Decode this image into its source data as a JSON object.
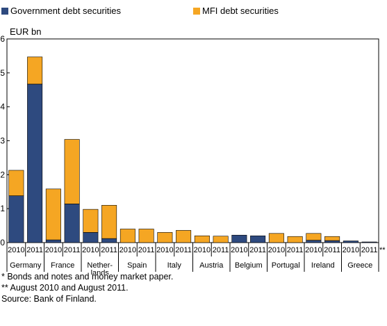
{
  "chart_data": {
    "type": "bar",
    "stacked": true,
    "unit_label": "EUR bn",
    "ylim": [
      0,
      6
    ],
    "y_ticks": [
      "0",
      "1",
      "2",
      "3",
      "4",
      "5",
      "6"
    ],
    "grid": false,
    "legend_position": "top",
    "colors": {
      "government": "#2e4a7f",
      "mfi": "#f5a623"
    },
    "series": [
      {
        "name": "Government debt securities",
        "key": "government",
        "values": [
          1.38,
          4.67,
          0.08,
          1.14,
          0.3,
          0.12,
          0.0,
          0.0,
          0.0,
          0.0,
          0.0,
          0.0,
          0.22,
          0.2,
          0.0,
          0.0,
          0.07,
          0.06,
          0.05,
          0.02
        ]
      },
      {
        "name": "MFI debt securities",
        "key": "mfi",
        "values": [
          0.75,
          0.8,
          1.5,
          1.9,
          0.68,
          0.98,
          0.4,
          0.4,
          0.3,
          0.36,
          0.2,
          0.19,
          0.0,
          0.0,
          0.27,
          0.18,
          0.2,
          0.12,
          0.0,
          0.0
        ]
      }
    ],
    "x_ticks": [
      "2010",
      "2011",
      "2010",
      "2011",
      "2010",
      "2011",
      "2010",
      "2011",
      "2010",
      "2011",
      "2010",
      "2011",
      "2010",
      "2011",
      "2010",
      "2011",
      "2010",
      "2011",
      "2010",
      "2011"
    ],
    "groups": [
      "Germany",
      "France",
      "Nether-\nlands",
      "Spain",
      "Italy",
      "Austria",
      "Belgium",
      "Portugal",
      "Ireland",
      "Greece"
    ],
    "last_year_marker": "**"
  },
  "notes": [
    "* Bonds and notes and money market paper.",
    "** August 2010 and August 2011.",
    "Source: Bank of Finland."
  ]
}
